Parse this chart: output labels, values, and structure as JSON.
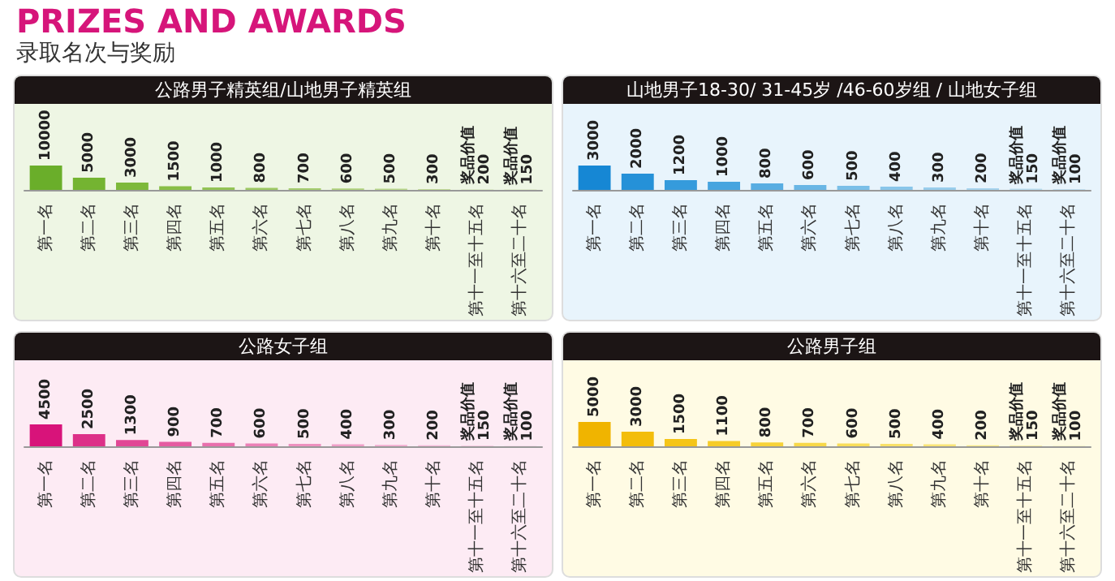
{
  "chart_data": [
    {
      "type": "other",
      "title": "PRIZES AND AWARDS",
      "subtitle": "录取名次与奖励"
    },
    {
      "type": "bar",
      "title": "公路男子精英组/山地男子精英组",
      "categories": [
        "第一名",
        "第二名",
        "第三名",
        "第四名",
        "第五名",
        "第六名",
        "第七名",
        "第八名",
        "第九名",
        "第十名",
        "第十一至十五名",
        "第十六至二十名"
      ],
      "values": [
        10000,
        5000,
        3000,
        1500,
        1000,
        800,
        700,
        600,
        500,
        300,
        200,
        150
      ],
      "value_labels": [
        "10000",
        "5000",
        "3000",
        "1500",
        "1000",
        "800",
        "700",
        "600",
        "500",
        "300",
        "奖品价值 200",
        "奖品价值 150"
      ],
      "colors": [
        "#6aae2a",
        "#74b431",
        "#7db93a",
        "#88be47",
        "#92c354",
        "#9cc862",
        "#a5cd6e",
        "#afd27b",
        "#b8d789",
        "#c1dc96",
        "#cfe4ad",
        "#d6e8b8"
      ]
    },
    {
      "type": "bar",
      "title": "山地男子18-30/ 31-45岁 /46-60岁组 / 山地女子组",
      "categories": [
        "第一名",
        "第二名",
        "第三名",
        "第四名",
        "第五名",
        "第六名",
        "第七名",
        "第八名",
        "第九名",
        "第十名",
        "第十一至十五名",
        "第十六至二十名"
      ],
      "values": [
        3000,
        2000,
        1200,
        1000,
        800,
        600,
        500,
        400,
        300,
        200,
        150,
        100
      ],
      "value_labels": [
        "3000",
        "2000",
        "1200",
        "1000",
        "800",
        "600",
        "500",
        "400",
        "300",
        "200",
        "奖品价值 150",
        "奖品价值 100"
      ],
      "colors": [
        "#1687d4",
        "#2591d8",
        "#359bdc",
        "#47a4df",
        "#58ade2",
        "#69b6e5",
        "#7abfe8",
        "#89c6ea",
        "#98cdec",
        "#a6d4ee",
        "#b9ddf1",
        "#c2e1f2"
      ]
    },
    {
      "type": "bar",
      "title": "公路女子组",
      "categories": [
        "第一名",
        "第二名",
        "第三名",
        "第四名",
        "第五名",
        "第六名",
        "第七名",
        "第八名",
        "第九名",
        "第十名",
        "第十一至十五名",
        "第十六至二十名"
      ],
      "values": [
        4500,
        2500,
        1300,
        900,
        700,
        600,
        500,
        400,
        300,
        200,
        150,
        100
      ],
      "value_labels": [
        "4500",
        "2500",
        "1300",
        "900",
        "700",
        "600",
        "500",
        "400",
        "300",
        "200",
        "奖品价值 150",
        "奖品价值 100"
      ],
      "colors": [
        "#d8137a",
        "#dd3088",
        "#e14795",
        "#e55ca1",
        "#e86fac",
        "#eb80b6",
        "#ee90bf",
        "#f09fc8",
        "#f2acd0",
        "#f4b8d7",
        "#f7cde3",
        "#f8d6e8"
      ]
    },
    {
      "type": "bar",
      "title": "公路男子组",
      "categories": [
        "第一名",
        "第二名",
        "第三名",
        "第四名",
        "第五名",
        "第六名",
        "第七名",
        "第八名",
        "第九名",
        "第十名",
        "第十一至十五名",
        "第十六至二十名"
      ],
      "values": [
        5000,
        3000,
        1500,
        1100,
        800,
        700,
        600,
        500,
        400,
        200,
        150,
        100
      ],
      "value_labels": [
        "5000",
        "3000",
        "1500",
        "1100",
        "800",
        "700",
        "600",
        "500",
        "400",
        "200",
        "奖品价值 150",
        "奖品价值 100"
      ],
      "colors": [
        "#f0b400",
        "#f3bd0a",
        "#f5c518",
        "#f6cc28",
        "#f7d238",
        "#f8d848",
        "#f9dd58",
        "#f9e168",
        "#fae577",
        "#fbe986",
        "#fcefa8",
        "#fdf2b5"
      ]
    }
  ]
}
